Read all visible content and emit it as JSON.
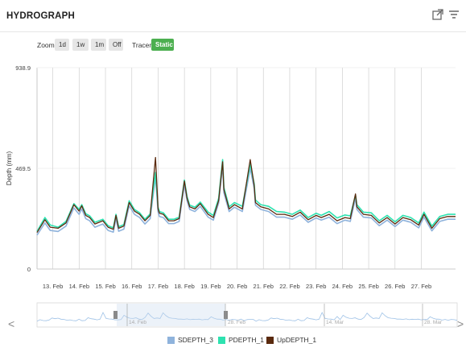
{
  "header": {
    "title": "HYDROGRAPH",
    "export_icon": "external-link-icon",
    "filter_icon": "filter-icon"
  },
  "toolbar": {
    "zoom_label": "Zoom",
    "zoom_buttons": [
      "1d",
      "1w",
      "1m",
      "Off"
    ],
    "tracer_label": "Tracer",
    "tracer_button": "Static"
  },
  "colors": {
    "SDEPTH_3": "#8fb3dc",
    "PDEPTH_1": "#2de2b0",
    "UpDEPTH_1": "#5a2a0e"
  },
  "legend": [
    "SDEPTH_3",
    "PDEPTH_1",
    "UpDEPTH_1"
  ],
  "navigator": {
    "labels": [
      "14. Feb",
      "28. Feb",
      "14. Mar",
      "28. Mar"
    ],
    "left_arrow": "<",
    "right_arrow": ">"
  },
  "chart_data": {
    "type": "line",
    "ylabel": "Depth (mm)",
    "yticks": [
      "0",
      "469.5",
      "938.9"
    ],
    "ylim": [
      0,
      938.9
    ],
    "x_unit": "day of February (day-of-month)",
    "xlim": [
      12.4,
      28.3
    ],
    "xticks": [
      "13. Feb",
      "14. Feb",
      "15. Feb",
      "16. Feb",
      "17. Feb",
      "18. Feb",
      "19. Feb",
      "20. Feb",
      "21. Feb",
      "22. Feb",
      "23. Feb",
      "24. Feb",
      "25. Feb",
      "26. Feb",
      "27. Feb"
    ],
    "series": [
      {
        "name": "UpDEPTH_1",
        "x": [
          12.4,
          12.7,
          12.9,
          13.2,
          13.5,
          13.8,
          14.0,
          14.1,
          14.25,
          14.4,
          14.6,
          14.9,
          15.1,
          15.3,
          15.4,
          15.5,
          15.7,
          15.9,
          16.1,
          16.3,
          16.5,
          16.7,
          16.9,
          17.0,
          17.05,
          17.2,
          17.4,
          17.6,
          17.8,
          18.0,
          18.1,
          18.2,
          18.4,
          18.6,
          18.9,
          19.1,
          19.3,
          19.45,
          19.5,
          19.7,
          19.9,
          20.2,
          20.5,
          20.65,
          20.7,
          20.9,
          21.2,
          21.5,
          21.8,
          22.1,
          22.4,
          22.7,
          23.0,
          23.2,
          23.5,
          23.8,
          24.1,
          24.3,
          24.5,
          24.55,
          24.8,
          25.1,
          25.4,
          25.7,
          26.0,
          26.3,
          26.6,
          26.9,
          27.1,
          27.4,
          27.7,
          28.0,
          28.3
        ],
        "values": [
          170,
          230,
          195,
          190,
          215,
          300,
          270,
          295,
          250,
          240,
          210,
          225,
          195,
          185,
          250,
          190,
          200,
          310,
          270,
          255,
          225,
          250,
          520,
          280,
          260,
          255,
          225,
          225,
          235,
          410,
          330,
          290,
          280,
          305,
          255,
          240,
          320,
          500,
          370,
          280,
          300,
          280,
          510,
          390,
          310,
          290,
          280,
          255,
          255,
          245,
          265,
          230,
          250,
          240,
          255,
          225,
          240,
          235,
          350,
          290,
          255,
          250,
          215,
          240,
          210,
          240,
          230,
          205,
          255,
          190,
          235,
          245,
          245
        ]
      },
      {
        "name": "PDEPTH_1",
        "x": [
          12.4,
          12.7,
          12.9,
          13.2,
          13.5,
          13.8,
          14.0,
          14.1,
          14.25,
          14.4,
          14.6,
          14.9,
          15.1,
          15.3,
          15.4,
          15.5,
          15.7,
          15.9,
          16.1,
          16.3,
          16.5,
          16.7,
          16.9,
          17.0,
          17.05,
          17.2,
          17.4,
          17.6,
          17.8,
          18.0,
          18.1,
          18.2,
          18.4,
          18.6,
          18.9,
          19.1,
          19.3,
          19.45,
          19.5,
          19.7,
          19.9,
          20.2,
          20.5,
          20.65,
          20.7,
          20.9,
          21.2,
          21.5,
          21.8,
          22.1,
          22.4,
          22.7,
          23.0,
          23.2,
          23.5,
          23.8,
          24.1,
          24.3,
          24.5,
          24.55,
          24.8,
          25.1,
          25.4,
          25.7,
          26.0,
          26.3,
          26.6,
          26.9,
          27.1,
          27.4,
          27.7,
          28.0,
          28.3
        ],
        "values": [
          175,
          240,
          205,
          195,
          222,
          305,
          278,
          300,
          258,
          248,
          218,
          232,
          202,
          192,
          255,
          197,
          207,
          318,
          278,
          262,
          232,
          257,
          450,
          288,
          268,
          262,
          232,
          232,
          242,
          415,
          338,
          298,
          288,
          312,
          265,
          250,
          330,
          510,
          380,
          290,
          310,
          292,
          490,
          398,
          322,
          300,
          292,
          268,
          265,
          255,
          275,
          240,
          260,
          250,
          268,
          238,
          252,
          248,
          345,
          300,
          265,
          262,
          225,
          250,
          220,
          250,
          240,
          215,
          265,
          200,
          245,
          255,
          255
        ]
      },
      {
        "name": "SDEPTH_3",
        "x": [
          12.4,
          12.7,
          12.9,
          13.2,
          13.5,
          13.8,
          14.0,
          14.1,
          14.25,
          14.4,
          14.6,
          14.9,
          15.1,
          15.3,
          15.4,
          15.5,
          15.7,
          15.9,
          16.1,
          16.3,
          16.5,
          16.7,
          16.9,
          17.0,
          17.05,
          17.2,
          17.4,
          17.6,
          17.8,
          18.0,
          18.1,
          18.2,
          18.4,
          18.6,
          18.9,
          19.1,
          19.3,
          19.45,
          19.5,
          19.7,
          19.9,
          20.2,
          20.5,
          20.65,
          20.7,
          20.9,
          21.2,
          21.5,
          21.8,
          22.1,
          22.4,
          22.7,
          23.0,
          23.2,
          23.5,
          23.8,
          24.1,
          24.3,
          24.5,
          24.55,
          24.8,
          25.1,
          25.4,
          25.7,
          26.0,
          26.3,
          26.6,
          26.9,
          27.1,
          27.4,
          27.7,
          28.0,
          28.3
        ],
        "values": [
          158,
          215,
          180,
          175,
          200,
          285,
          255,
          280,
          235,
          225,
          195,
          210,
          180,
          172,
          235,
          176,
          186,
          295,
          255,
          240,
          210,
          235,
          430,
          265,
          245,
          240,
          212,
          212,
          222,
          395,
          318,
          278,
          268,
          292,
          242,
          228,
          308,
          485,
          355,
          268,
          288,
          268,
          470,
          375,
          298,
          278,
          268,
          242,
          242,
          232,
          252,
          218,
          238,
          228,
          242,
          212,
          228,
          222,
          330,
          278,
          242,
          238,
          202,
          228,
          198,
          228,
          218,
          192,
          242,
          178,
          222,
          232,
          232
        ]
      }
    ],
    "grid": true,
    "legend_position": "bottom-center"
  }
}
